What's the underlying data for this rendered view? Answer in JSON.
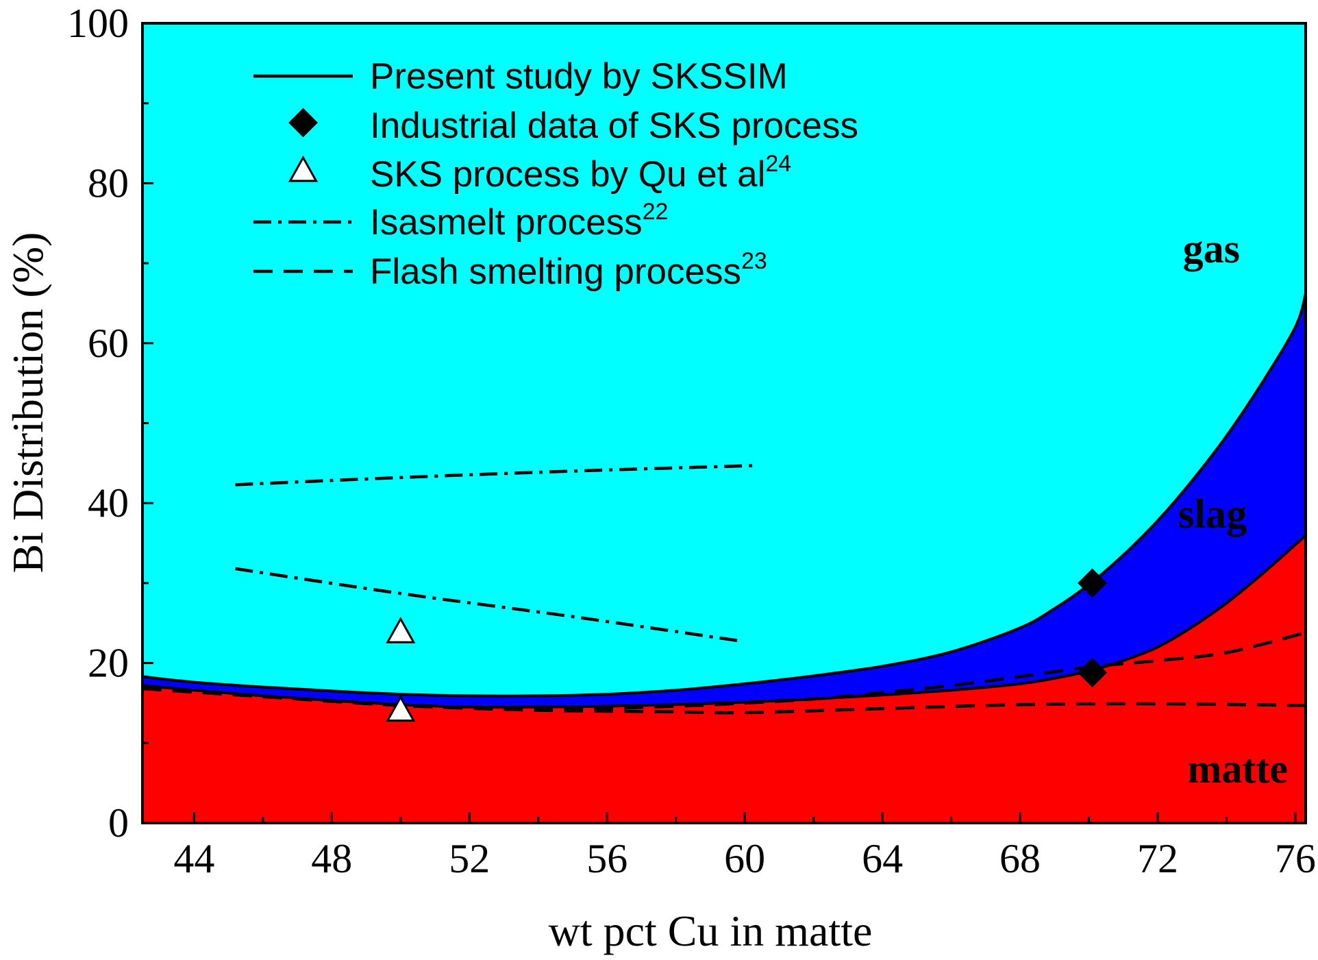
{
  "chart_data": {
    "type": "area",
    "title": "",
    "xlabel": "wt pct Cu in matte",
    "ylabel": "Bi Distribution (%)",
    "xlim": [
      42.5,
      76.3
    ],
    "ylim": [
      0,
      100
    ],
    "x_ticks": [
      44,
      48,
      52,
      56,
      60,
      64,
      68,
      72,
      76
    ],
    "y_ticks": [
      0,
      20,
      40,
      60,
      80,
      100
    ],
    "colors": {
      "gas": "#00FFFF",
      "slag": "#0000FF",
      "matte": "#FF0000",
      "line": "#000000",
      "diamond": "#000000",
      "triangle": "#FFFFFF"
    },
    "region_labels": {
      "gas": "gas",
      "slag": "slag",
      "matte": "matte"
    },
    "series": [
      {
        "name": "matte upper boundary (Present study by SKSSIM)",
        "style": "solid",
        "x": [
          42.5,
          44,
          46,
          48,
          50,
          52,
          54,
          56,
          58,
          60,
          62,
          64,
          66,
          68,
          69,
          70,
          71,
          72,
          73,
          74,
          75,
          76,
          76.3
        ],
        "y": [
          17.2,
          16.6,
          15.9,
          15.3,
          14.8,
          14.5,
          14.5,
          14.6,
          14.8,
          15.1,
          15.5,
          16.0,
          16.6,
          17.4,
          18.1,
          19.0,
          20.3,
          22.0,
          24.5,
          27.5,
          31.0,
          34.8,
          36.0
        ]
      },
      {
        "name": "slag upper boundary (Present study by SKSSIM)",
        "style": "solid",
        "x": [
          42.5,
          44,
          46,
          48,
          50,
          52,
          54,
          56,
          58,
          60,
          62,
          64,
          66,
          68,
          69,
          70,
          71,
          72,
          73,
          74,
          75,
          76,
          76.3
        ],
        "y": [
          18.3,
          17.6,
          17.0,
          16.5,
          16.1,
          15.9,
          15.9,
          16.1,
          16.6,
          17.4,
          18.4,
          19.6,
          21.4,
          24.4,
          26.8,
          29.8,
          33.5,
          37.8,
          42.8,
          48.4,
          54.8,
          62.0,
          66.2
        ]
      },
      {
        "name": "Flash smelting process (lower)",
        "style": "dashed",
        "x": [
          42.5,
          46,
          50,
          54,
          58,
          60,
          64,
          68,
          72,
          76.3
        ],
        "y": [
          16.8,
          15.8,
          14.7,
          14.1,
          13.9,
          13.8,
          14.3,
          14.8,
          14.9,
          14.7
        ]
      },
      {
        "name": "Flash smelting process (upper)",
        "style": "dashed",
        "x": [
          42.5,
          46,
          50,
          54,
          58,
          60,
          62,
          64,
          66,
          68,
          70,
          72,
          74,
          76.3
        ],
        "y": [
          16.8,
          15.8,
          14.7,
          14.2,
          14.6,
          15.0,
          15.5,
          16.3,
          17.2,
          18.3,
          19.5,
          20.3,
          21.3,
          23.8
        ]
      },
      {
        "name": "Isasmelt process (upper)",
        "style": "dashdot",
        "x": [
          45.2,
          50,
          55,
          60.3
        ],
        "y": [
          42.3,
          43.2,
          44.0,
          44.7
        ]
      },
      {
        "name": "Isasmelt process (lower)",
        "style": "dashdot",
        "x": [
          45.2,
          50,
          55,
          59.8
        ],
        "y": [
          31.8,
          28.7,
          25.8,
          22.8
        ]
      }
    ],
    "points": [
      {
        "name": "Industrial data of SKS process",
        "marker": "diamond",
        "x": [
          70.1,
          70.1
        ],
        "y": [
          30.0,
          18.8
        ]
      },
      {
        "name": "SKS process by Qu et al",
        "marker": "triangle",
        "x": [
          50.0,
          50.0
        ],
        "y": [
          23.8,
          14.0
        ]
      }
    ],
    "legend": [
      {
        "symbol": "solid",
        "label": "Present study by SKSSIM",
        "sup": ""
      },
      {
        "symbol": "diamond",
        "label": "Industrial data of SKS process",
        "sup": ""
      },
      {
        "symbol": "triangle",
        "label": "SKS process by Qu et al",
        "sup": "24"
      },
      {
        "symbol": "dashdot",
        "label": "Isasmelt process",
        "sup": "22"
      },
      {
        "symbol": "dashed",
        "label": "Flash smelting process",
        "sup": "23"
      }
    ],
    "legend_position": "top-left"
  }
}
